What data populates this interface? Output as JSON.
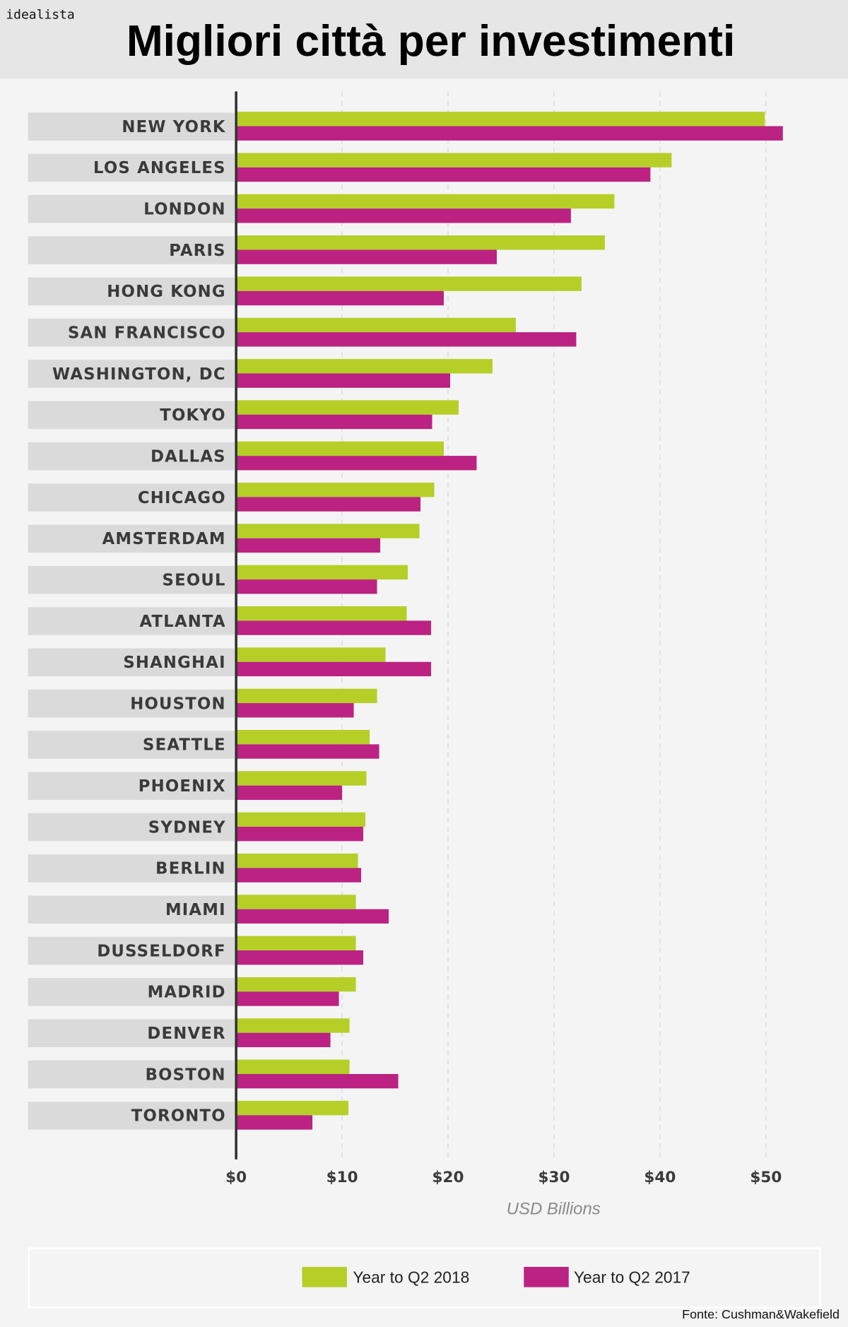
{
  "header": {
    "brand": "idealista",
    "title": "Migliori città per investimenti"
  },
  "chart_data": {
    "type": "bar",
    "orientation": "horizontal",
    "title": "Migliori città per investimenti",
    "xlabel": "USD Billions",
    "xlim": [
      0,
      50
    ],
    "xticks": [
      "$0",
      "$10",
      "$20",
      "$30",
      "$40",
      "$50"
    ],
    "grid": true,
    "legend_position": "bottom",
    "categories": [
      "NEW YORK",
      "LOS ANGELES",
      "LONDON",
      "PARIS",
      "HONG KONG",
      "SAN FRANCISCO",
      "WASHINGTON, DC",
      "TOKYO",
      "DALLAS",
      "CHICAGO",
      "AMSTERDAM",
      "SEOUL",
      "ATLANTA",
      "SHANGHAI",
      "HOUSTON",
      "SEATTLE",
      "PHOENIX",
      "SYDNEY",
      "BERLIN",
      "MIAMI",
      "DUSSELDORF",
      "MADRID",
      "DENVER",
      "BOSTON",
      "TORONTO"
    ],
    "series": [
      {
        "name": "Year to Q2 2018",
        "color": "#b5cf27",
        "values": [
          49.9,
          41.1,
          35.7,
          34.8,
          32.6,
          26.4,
          24.2,
          21.0,
          19.6,
          18.7,
          17.3,
          16.2,
          16.1,
          14.1,
          13.3,
          12.6,
          12.3,
          12.2,
          11.5,
          11.3,
          11.3,
          11.3,
          10.7,
          10.7,
          10.6
        ]
      },
      {
        "name": "Year to Q2 2017",
        "color": "#bb2282",
        "values": [
          51.6,
          39.1,
          31.6,
          24.6,
          19.6,
          32.1,
          20.2,
          18.5,
          22.7,
          17.4,
          13.6,
          13.3,
          18.4,
          18.4,
          11.1,
          13.5,
          10.0,
          12.0,
          11.8,
          14.4,
          12.0,
          9.7,
          8.9,
          15.3,
          7.2
        ]
      }
    ]
  },
  "source": "Fonte: Cushman&Wakefield"
}
